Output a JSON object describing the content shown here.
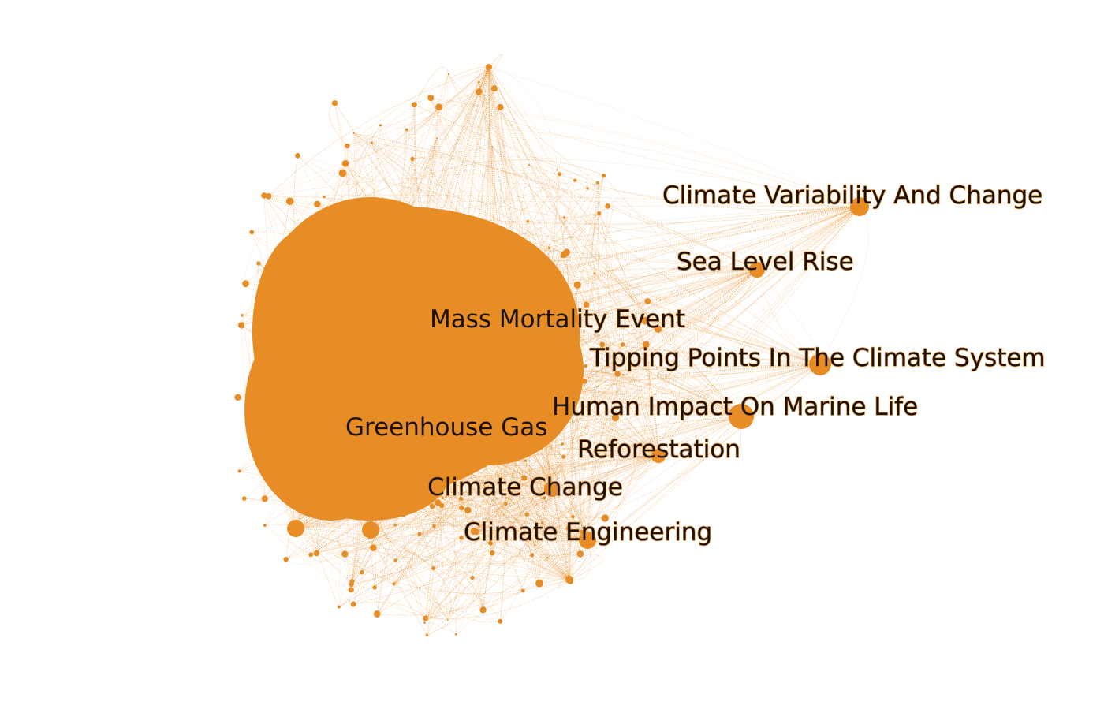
{
  "graph": {
    "node_color": "#e88c26",
    "edge_color": "#e88c26",
    "background": "#ffffff",
    "labels": [
      {
        "id": "climate-variability-and-change",
        "text": "Climate Variability And Change"
      },
      {
        "id": "sea-level-rise",
        "text": "Sea Level Rise"
      },
      {
        "id": "mass-mortality-event",
        "text": "Mass Mortality Event"
      },
      {
        "id": "tipping-points-in-the-climate-system",
        "text": "Tipping Points In The Climate System"
      },
      {
        "id": "human-impact-on-marine-life",
        "text": "Human Impact On Marine Life"
      },
      {
        "id": "greenhouse-gas",
        "text": "Greenhouse Gas"
      },
      {
        "id": "reforestation",
        "text": "Reforestation"
      },
      {
        "id": "climate-change",
        "text": "Climate Change"
      },
      {
        "id": "climate-engineering",
        "text": "Climate Engineering"
      }
    ]
  }
}
